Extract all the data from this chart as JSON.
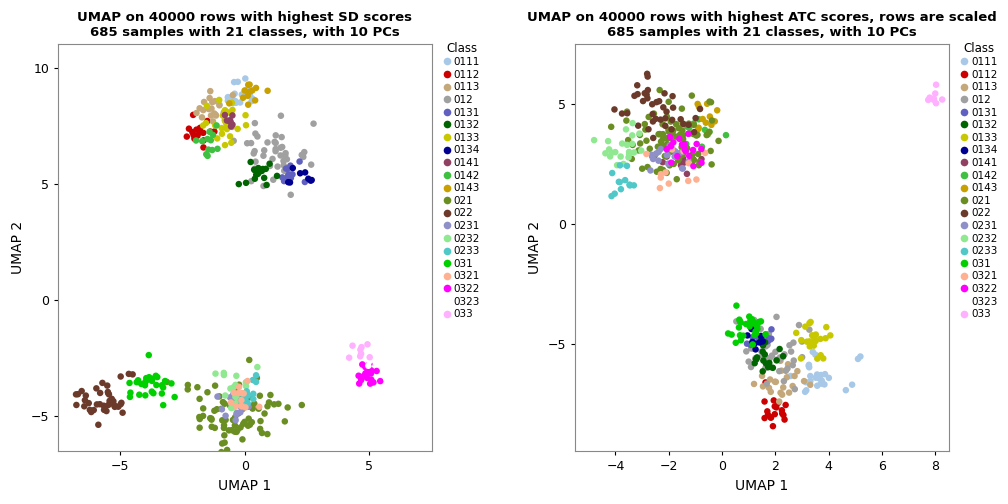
{
  "title1": "UMAP on 40000 rows with highest SD scores\n685 samples with 21 classes, with 10 PCs",
  "title2": "UMAP on 40000 rows with highest ATC scores, rows are scaled\n685 samples with 21 classes, with 10 PCs",
  "xlabel": "UMAP 1",
  "ylabel": "UMAP 2",
  "classes": [
    "0111",
    "0112",
    "0113",
    "012",
    "0131",
    "0132",
    "0133",
    "0134",
    "0141",
    "0142",
    "0143",
    "021",
    "022",
    "0231",
    "0232",
    "0233",
    "031",
    "0321",
    "0322",
    "0323",
    "033"
  ],
  "colors": {
    "0111": "#A8C8E8",
    "0112": "#CC0000",
    "0113": "#C4A87A",
    "012": "#A0A0A0",
    "0131": "#6060C0",
    "0132": "#006400",
    "0133": "#C8C800",
    "0134": "#000090",
    "0141": "#904060",
    "0142": "#40C040",
    "0143": "#C8A000",
    "021": "#6B8E23",
    "022": "#6B3A2A",
    "0231": "#9090C8",
    "0232": "#90E890",
    "0233": "#50C8C8",
    "031": "#00D000",
    "0321": "#FFB090",
    "0322": "#FF00FF",
    "0323": "#FFFFFF",
    "033": "#FFB0FF"
  },
  "plot1": {
    "xlim": [
      -7.5,
      7.5
    ],
    "ylim": [
      -6.5,
      11.0
    ],
    "xticks": [
      -5,
      0,
      5
    ],
    "yticks": [
      -5,
      0,
      5,
      10
    ]
  },
  "plot2": {
    "xlim": [
      -5.5,
      8.5
    ],
    "ylim": [
      -9.5,
      7.5
    ],
    "xticks": [
      -4,
      -2,
      0,
      2,
      4,
      6,
      8
    ],
    "yticks": [
      -5,
      0,
      5
    ]
  },
  "point_size": 22,
  "figsize": [
    10.08,
    5.04
  ],
  "dpi": 100
}
